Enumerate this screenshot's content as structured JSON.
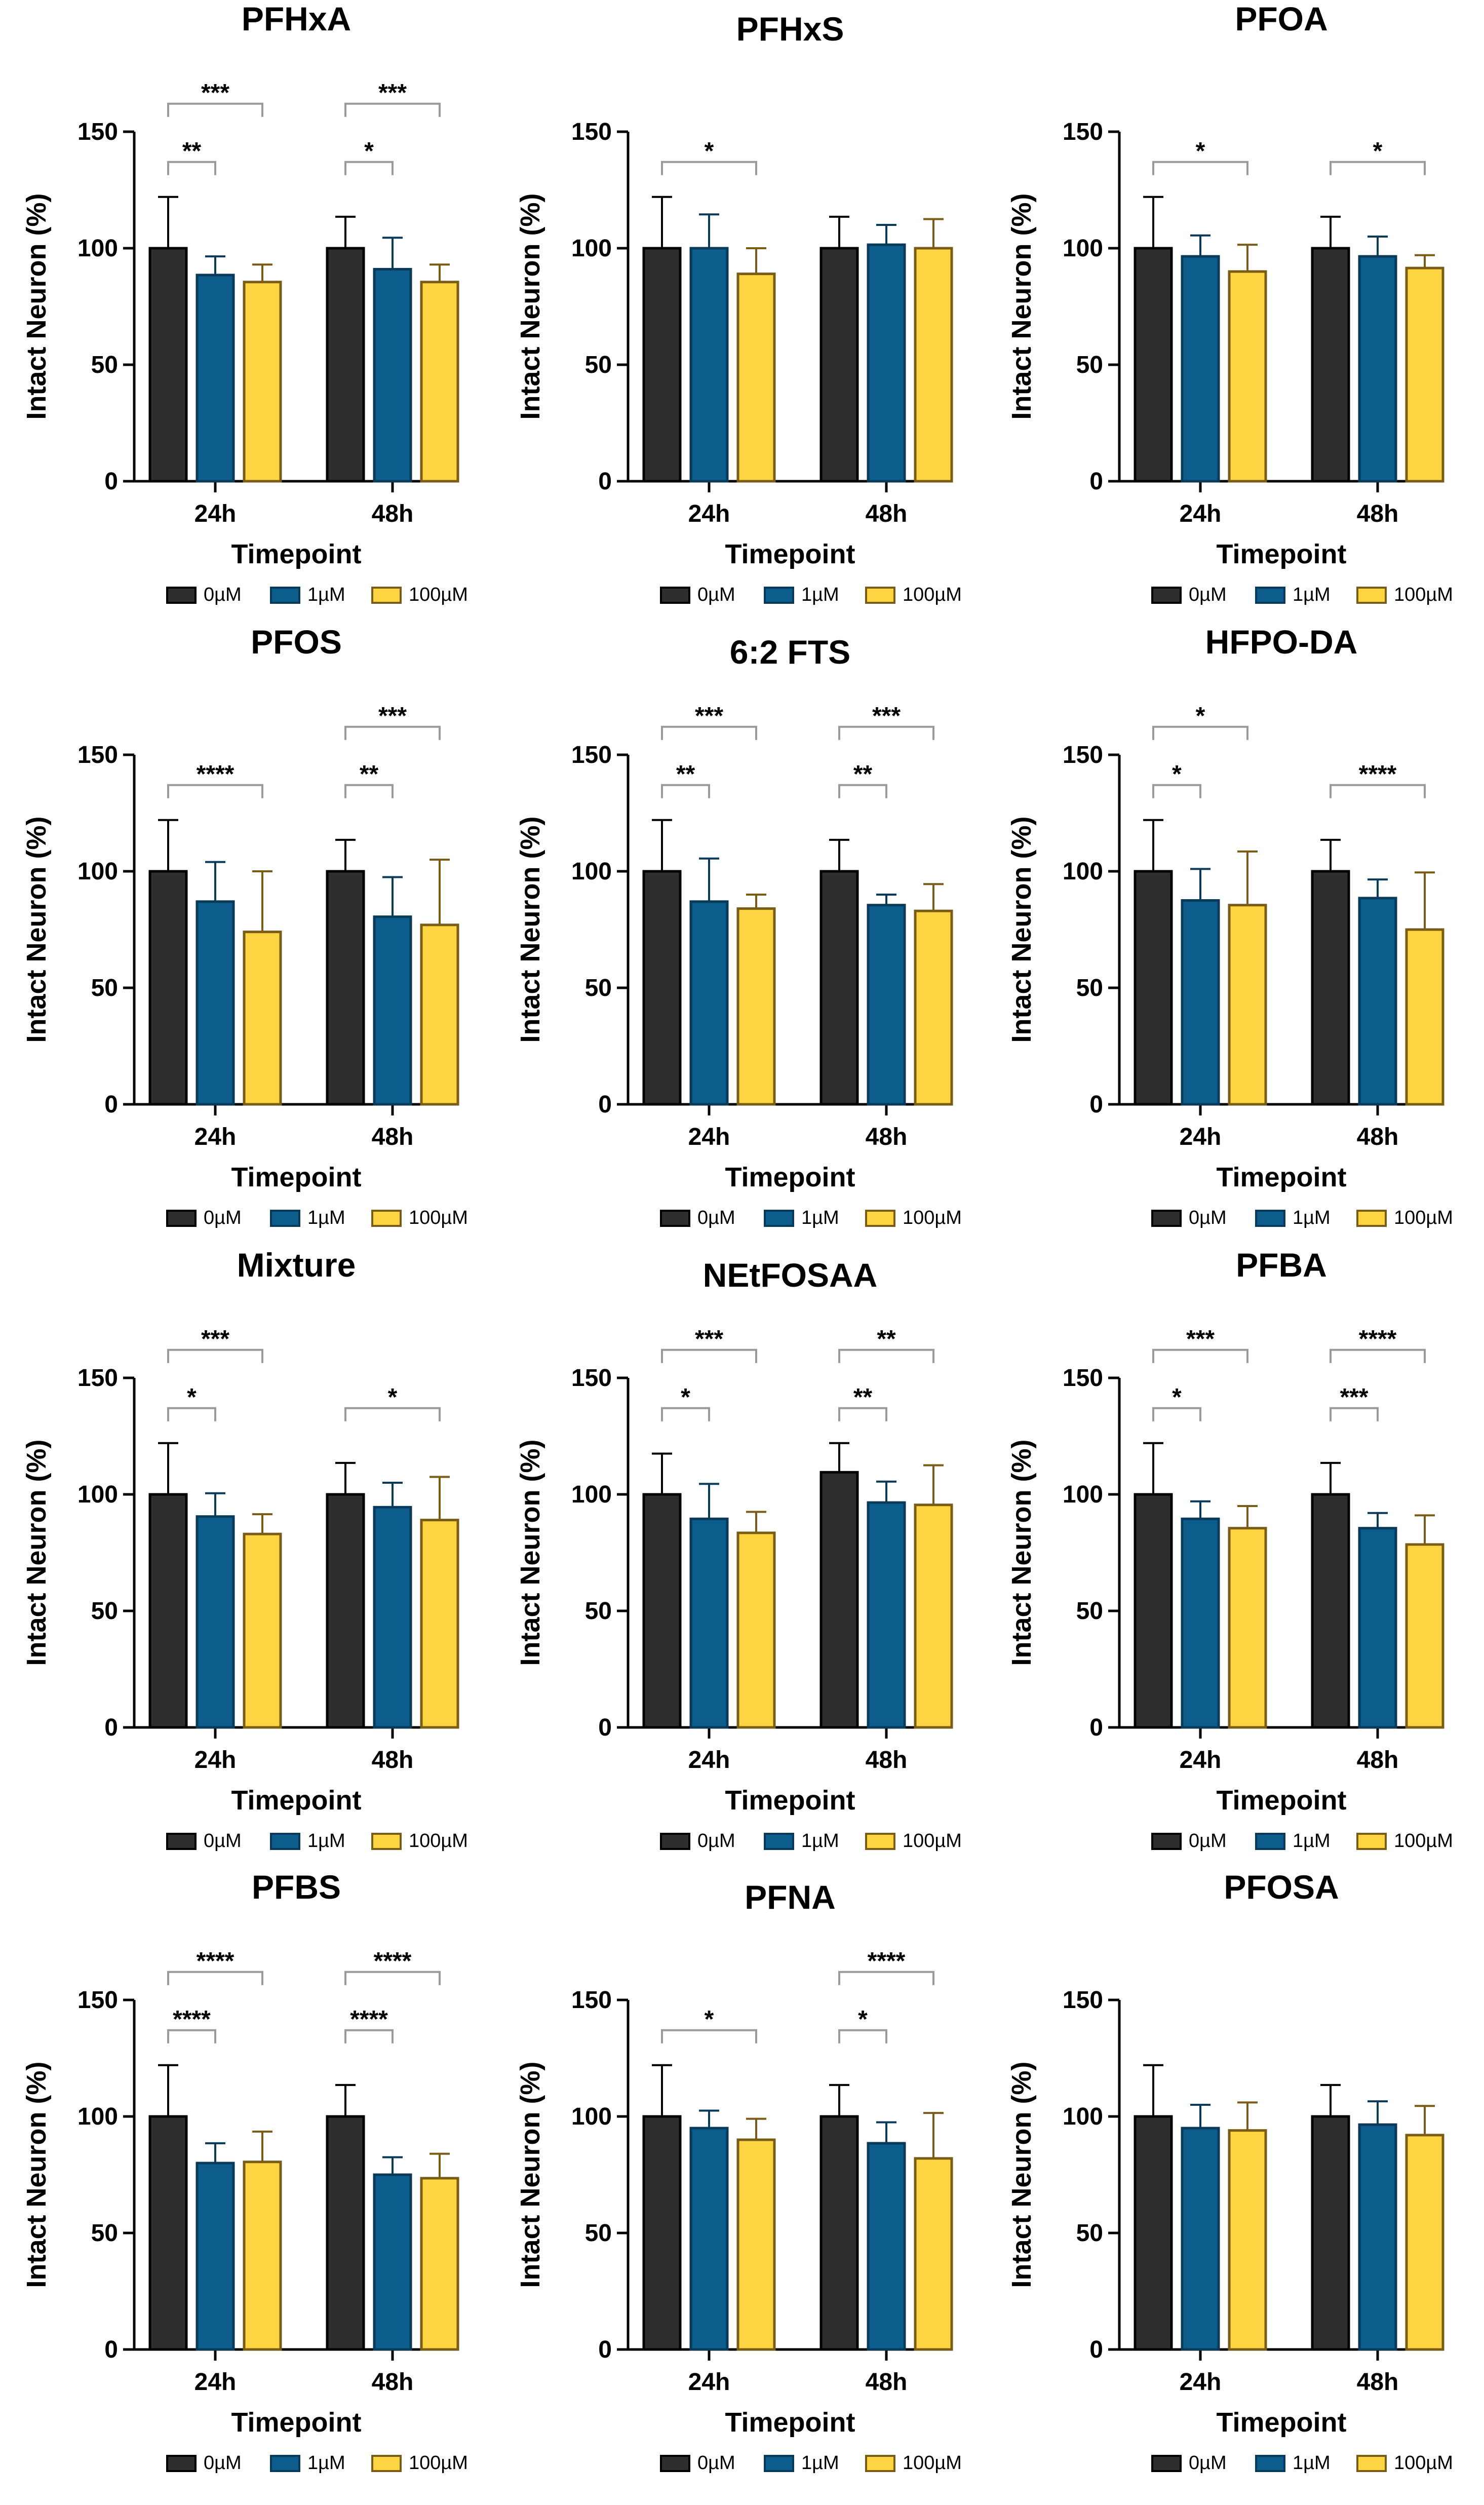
{
  "series_colors": {
    "0µM": {
      "fill": "#2e2e2e",
      "stroke": "#000000"
    },
    "1µM": {
      "fill": "#0c5d8c",
      "stroke": "#0a3a5a"
    },
    "100µM": {
      "fill": "#fdd441",
      "stroke": "#7a5c17"
    }
  },
  "chart_data": [
    {
      "type": "bar",
      "title": "PFHxA",
      "xlabel": "Timepoint",
      "ylabel": "Intact Neuron (%)",
      "ylim": [
        0,
        150
      ],
      "yticks": [
        0,
        50,
        100,
        150
      ],
      "categories": [
        "24h",
        "48h"
      ],
      "legend": [
        "0µM",
        "1µM",
        "100µM"
      ],
      "series": [
        {
          "name": "0µM",
          "values": [
            100,
            100
          ],
          "errors": [
            22,
            13.5
          ]
        },
        {
          "name": "1µM",
          "values": [
            88.5,
            91
          ],
          "errors": [
            8,
            13.5
          ]
        },
        {
          "name": "100µM",
          "values": [
            85.5,
            85.5
          ],
          "errors": [
            7.5,
            7.5
          ]
        }
      ],
      "annotations": [
        {
          "category": 0,
          "from": 0,
          "to": 2,
          "level": 2,
          "label": "***"
        },
        {
          "category": 0,
          "from": 0,
          "to": 1,
          "level": 1,
          "label": "**"
        },
        {
          "category": 1,
          "from": 0,
          "to": 2,
          "level": 2,
          "label": "***"
        },
        {
          "category": 1,
          "from": 0,
          "to": 1,
          "level": 1,
          "label": "*"
        }
      ]
    },
    {
      "type": "bar",
      "title": "PFHxS",
      "xlabel": "Timepoint",
      "ylabel": "Intact Neuron (%)",
      "ylim": [
        0,
        150
      ],
      "yticks": [
        0,
        50,
        100,
        150
      ],
      "categories": [
        "24h",
        "48h"
      ],
      "legend": [
        "0µM",
        "1µM",
        "100µM"
      ],
      "series": [
        {
          "name": "0µM",
          "values": [
            100,
            100
          ],
          "errors": [
            22,
            13.5
          ]
        },
        {
          "name": "1µM",
          "values": [
            100,
            101.5
          ],
          "errors": [
            14.5,
            8.5
          ]
        },
        {
          "name": "100µM",
          "values": [
            89,
            100
          ],
          "errors": [
            11,
            12.5
          ]
        }
      ],
      "annotations": [
        {
          "category": 0,
          "from": 0,
          "to": 2,
          "level": 1,
          "label": "*"
        }
      ]
    },
    {
      "type": "bar",
      "title": "PFOA",
      "xlabel": "Timepoint",
      "ylabel": "Intact Neuron (%)",
      "ylim": [
        0,
        150
      ],
      "yticks": [
        0,
        50,
        100,
        150
      ],
      "categories": [
        "24h",
        "48h"
      ],
      "legend": [
        "0µM",
        "1µM",
        "100µM"
      ],
      "series": [
        {
          "name": "0µM",
          "values": [
            100,
            100
          ],
          "errors": [
            22,
            13.5
          ]
        },
        {
          "name": "1µM",
          "values": [
            96.5,
            96.5
          ],
          "errors": [
            9,
            8.5
          ]
        },
        {
          "name": "100µM",
          "values": [
            90,
            91.5
          ],
          "errors": [
            11.5,
            5.5
          ]
        }
      ],
      "annotations": [
        {
          "category": 0,
          "from": 0,
          "to": 2,
          "level": 1,
          "label": "*"
        },
        {
          "category": 1,
          "from": 0,
          "to": 2,
          "level": 1,
          "label": "*"
        }
      ]
    },
    {
      "type": "bar",
      "title": "PFOS",
      "xlabel": "Timepoint",
      "ylabel": "Intact Neuron (%)",
      "ylim": [
        0,
        150
      ],
      "yticks": [
        0,
        50,
        100,
        150
      ],
      "categories": [
        "24h",
        "48h"
      ],
      "legend": [
        "0µM",
        "1µM",
        "100µM"
      ],
      "series": [
        {
          "name": "0µM",
          "values": [
            100,
            100
          ],
          "errors": [
            22,
            13.5
          ]
        },
        {
          "name": "1µM",
          "values": [
            87,
            80.5
          ],
          "errors": [
            17,
            17
          ]
        },
        {
          "name": "100µM",
          "values": [
            74,
            77
          ],
          "errors": [
            26,
            28
          ]
        }
      ],
      "annotations": [
        {
          "category": 0,
          "from": 0,
          "to": 2,
          "level": 1,
          "label": "****"
        },
        {
          "category": 1,
          "from": 0,
          "to": 2,
          "level": 2,
          "label": "***"
        },
        {
          "category": 1,
          "from": 0,
          "to": 1,
          "level": 1,
          "label": "**"
        }
      ]
    },
    {
      "type": "bar",
      "title": "6:2 FTS",
      "xlabel": "Timepoint",
      "ylabel": "Intact Neuron (%)",
      "ylim": [
        0,
        150
      ],
      "yticks": [
        0,
        50,
        100,
        150
      ],
      "categories": [
        "24h",
        "48h"
      ],
      "legend": [
        "0µM",
        "1µM",
        "100µM"
      ],
      "series": [
        {
          "name": "0µM",
          "values": [
            100,
            100
          ],
          "errors": [
            22,
            13.5
          ]
        },
        {
          "name": "1µM",
          "values": [
            87,
            85.5
          ],
          "errors": [
            18.5,
            4.5
          ]
        },
        {
          "name": "100µM",
          "values": [
            84,
            83
          ],
          "errors": [
            6,
            11.5
          ]
        }
      ],
      "annotations": [
        {
          "category": 0,
          "from": 0,
          "to": 2,
          "level": 2,
          "label": "***"
        },
        {
          "category": 0,
          "from": 0,
          "to": 1,
          "level": 1,
          "label": "**"
        },
        {
          "category": 1,
          "from": 0,
          "to": 2,
          "level": 2,
          "label": "***"
        },
        {
          "category": 1,
          "from": 0,
          "to": 1,
          "level": 1,
          "label": "**"
        }
      ]
    },
    {
      "type": "bar",
      "title": "HFPO-DA",
      "xlabel": "Timepoint",
      "ylabel": "Intact Neuron (%)",
      "ylim": [
        0,
        150
      ],
      "yticks": [
        0,
        50,
        100,
        150
      ],
      "categories": [
        "24h",
        "48h"
      ],
      "legend": [
        "0µM",
        "1µM",
        "100µM"
      ],
      "series": [
        {
          "name": "0µM",
          "values": [
            100,
            100
          ],
          "errors": [
            22,
            13.5
          ]
        },
        {
          "name": "1µM",
          "values": [
            87.5,
            88.5
          ],
          "errors": [
            13.5,
            8
          ]
        },
        {
          "name": "100µM",
          "values": [
            85.5,
            75
          ],
          "errors": [
            23,
            24.5
          ]
        }
      ],
      "annotations": [
        {
          "category": 0,
          "from": 0,
          "to": 2,
          "level": 2,
          "label": "*"
        },
        {
          "category": 0,
          "from": 0,
          "to": 1,
          "level": 1,
          "label": "*"
        },
        {
          "category": 1,
          "from": 0,
          "to": 2,
          "level": 1,
          "label": "****"
        }
      ]
    },
    {
      "type": "bar",
      "title": "Mixture",
      "xlabel": "Timepoint",
      "ylabel": "Intact Neuron (%)",
      "ylim": [
        0,
        150
      ],
      "yticks": [
        0,
        50,
        100,
        150
      ],
      "categories": [
        "24h",
        "48h"
      ],
      "legend": [
        "0µM",
        "1µM",
        "100µM"
      ],
      "series": [
        {
          "name": "0µM",
          "values": [
            100,
            100
          ],
          "errors": [
            22,
            13.5
          ]
        },
        {
          "name": "1µM",
          "values": [
            90.5,
            94.5
          ],
          "errors": [
            10,
            10.5
          ]
        },
        {
          "name": "100µM",
          "values": [
            83,
            89
          ],
          "errors": [
            8.5,
            18.5
          ]
        }
      ],
      "annotations": [
        {
          "category": 0,
          "from": 0,
          "to": 2,
          "level": 2,
          "label": "***"
        },
        {
          "category": 0,
          "from": 0,
          "to": 1,
          "level": 1,
          "label": "*"
        },
        {
          "category": 1,
          "from": 0,
          "to": 2,
          "level": 1,
          "label": "*"
        }
      ]
    },
    {
      "type": "bar",
      "title": "NEtFOSAA",
      "xlabel": "Timepoint",
      "ylabel": "Intact Neuron (%)",
      "ylim": [
        0,
        150
      ],
      "yticks": [
        0,
        50,
        100,
        150
      ],
      "categories": [
        "24h",
        "48h"
      ],
      "legend": [
        "0µM",
        "1µM",
        "100µM"
      ],
      "series": [
        {
          "name": "0µM",
          "values": [
            100,
            109.5
          ],
          "errors": [
            17.5,
            12.5
          ]
        },
        {
          "name": "1µM",
          "values": [
            89.5,
            96.5
          ],
          "errors": [
            15,
            9
          ]
        },
        {
          "name": "100µM",
          "values": [
            83.5,
            95.5
          ],
          "errors": [
            9,
            17
          ]
        }
      ],
      "annotations": [
        {
          "category": 0,
          "from": 0,
          "to": 2,
          "level": 2,
          "label": "***"
        },
        {
          "category": 0,
          "from": 0,
          "to": 1,
          "level": 1,
          "label": "*"
        },
        {
          "category": 1,
          "from": 0,
          "to": 2,
          "level": 2,
          "label": "**"
        },
        {
          "category": 1,
          "from": 0,
          "to": 1,
          "level": 1,
          "label": "**"
        }
      ]
    },
    {
      "type": "bar",
      "title": "PFBA",
      "xlabel": "Timepoint",
      "ylabel": "Intact Neuron (%)",
      "ylim": [
        0,
        150
      ],
      "yticks": [
        0,
        50,
        100,
        150
      ],
      "categories": [
        "24h",
        "48h"
      ],
      "legend": [
        "0µM",
        "1µM",
        "100µM"
      ],
      "series": [
        {
          "name": "0µM",
          "values": [
            100,
            100
          ],
          "errors": [
            22,
            13.5
          ]
        },
        {
          "name": "1µM",
          "values": [
            89.5,
            85.5
          ],
          "errors": [
            7.5,
            6.5
          ]
        },
        {
          "name": "100µM",
          "values": [
            85.5,
            78.5
          ],
          "errors": [
            9.5,
            12.5
          ]
        }
      ],
      "annotations": [
        {
          "category": 0,
          "from": 0,
          "to": 2,
          "level": 2,
          "label": "***"
        },
        {
          "category": 0,
          "from": 0,
          "to": 1,
          "level": 1,
          "label": "*"
        },
        {
          "category": 1,
          "from": 0,
          "to": 2,
          "level": 2,
          "label": "****"
        },
        {
          "category": 1,
          "from": 0,
          "to": 1,
          "level": 1,
          "label": "***"
        }
      ]
    },
    {
      "type": "bar",
      "title": "PFBS",
      "xlabel": "Timepoint",
      "ylabel": "Intact Neuron (%)",
      "ylim": [
        0,
        150
      ],
      "yticks": [
        0,
        50,
        100,
        150
      ],
      "categories": [
        "24h",
        "48h"
      ],
      "legend": [
        "0µM",
        "1µM",
        "100µM"
      ],
      "series": [
        {
          "name": "0µM",
          "values": [
            100,
            100
          ],
          "errors": [
            22,
            13.5
          ]
        },
        {
          "name": "1µM",
          "values": [
            80,
            75
          ],
          "errors": [
            8.5,
            7.5
          ]
        },
        {
          "name": "100µM",
          "values": [
            80.5,
            73.5
          ],
          "errors": [
            13,
            10.5
          ]
        }
      ],
      "annotations": [
        {
          "category": 0,
          "from": 0,
          "to": 2,
          "level": 2,
          "label": "****"
        },
        {
          "category": 0,
          "from": 0,
          "to": 1,
          "level": 1,
          "label": "****"
        },
        {
          "category": 1,
          "from": 0,
          "to": 2,
          "level": 2,
          "label": "****"
        },
        {
          "category": 1,
          "from": 0,
          "to": 1,
          "level": 1,
          "label": "****"
        }
      ]
    },
    {
      "type": "bar",
      "title": "PFNA",
      "xlabel": "Timepoint",
      "ylabel": "Intact Neuron (%)",
      "ylim": [
        0,
        150
      ],
      "yticks": [
        0,
        50,
        100,
        150
      ],
      "categories": [
        "24h",
        "48h"
      ],
      "legend": [
        "0µM",
        "1µM",
        "100µM"
      ],
      "series": [
        {
          "name": "0µM",
          "values": [
            100,
            100
          ],
          "errors": [
            22,
            13.5
          ]
        },
        {
          "name": "1µM",
          "values": [
            95,
            88.5
          ],
          "errors": [
            7.5,
            9
          ]
        },
        {
          "name": "100µM",
          "values": [
            90,
            82
          ],
          "errors": [
            9,
            19.5
          ]
        }
      ],
      "annotations": [
        {
          "category": 0,
          "from": 0,
          "to": 2,
          "level": 1,
          "label": "*"
        },
        {
          "category": 1,
          "from": 0,
          "to": 2,
          "level": 2,
          "label": "****"
        },
        {
          "category": 1,
          "from": 0,
          "to": 1,
          "level": 1,
          "label": "*"
        }
      ]
    },
    {
      "type": "bar",
      "title": "PFOSA",
      "xlabel": "Timepoint",
      "ylabel": "Intact Neuron (%)",
      "ylim": [
        0,
        150
      ],
      "yticks": [
        0,
        50,
        100,
        150
      ],
      "categories": [
        "24h",
        "48h"
      ],
      "legend": [
        "0µM",
        "1µM",
        "100µM"
      ],
      "series": [
        {
          "name": "0µM",
          "values": [
            100,
            100
          ],
          "errors": [
            22,
            13.5
          ]
        },
        {
          "name": "1µM",
          "values": [
            95,
            96.5
          ],
          "errors": [
            10,
            10
          ]
        },
        {
          "name": "100µM",
          "values": [
            94,
            92
          ],
          "errors": [
            12,
            12.5
          ]
        }
      ],
      "annotations": []
    }
  ]
}
